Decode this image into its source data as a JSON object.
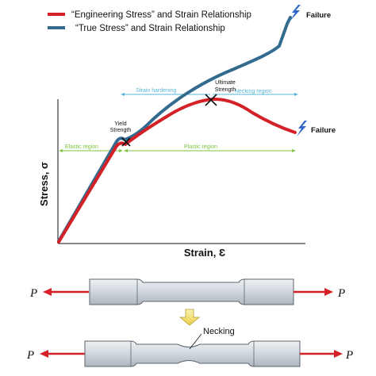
{
  "legend": {
    "engineering_label": "“Engineering Stress” and Strain Relationship",
    "true_label": "“True Stress” and Strain Relationship",
    "engineering_color": "#d42027",
    "true_color": "#336b8f"
  },
  "axes": {
    "xlabel": "Strain, Ɛ",
    "ylabel": "Stress, σ"
  },
  "annotations": {
    "yield_line1": "Yield",
    "yield_line2": "Strength",
    "ultimate_line1": "Ultimate",
    "ultimate_line2": "Strength",
    "strain_hardening": "Strain hardening",
    "necking_region": "Necking region",
    "elastic_region": "Elastic region",
    "plastic_region": "Plastic region",
    "failure_top": "Failure",
    "failure_right": "Failure",
    "region_color_blue": "#56b7d8",
    "region_color_green": "#7dc243"
  },
  "specimen": {
    "force_left_top": "P",
    "force_right_top": "P",
    "force_left_bottom": "P",
    "force_right_bottom": "P",
    "necking_label": "Necking",
    "arrow_color": "#d42027",
    "down_arrow_color": "#f2e06a",
    "bar_fill": "#cfd6de"
  },
  "icons": {
    "failure_icon": "lightning-bolt-icon",
    "yield_marker": "cross-marker-icon"
  }
}
